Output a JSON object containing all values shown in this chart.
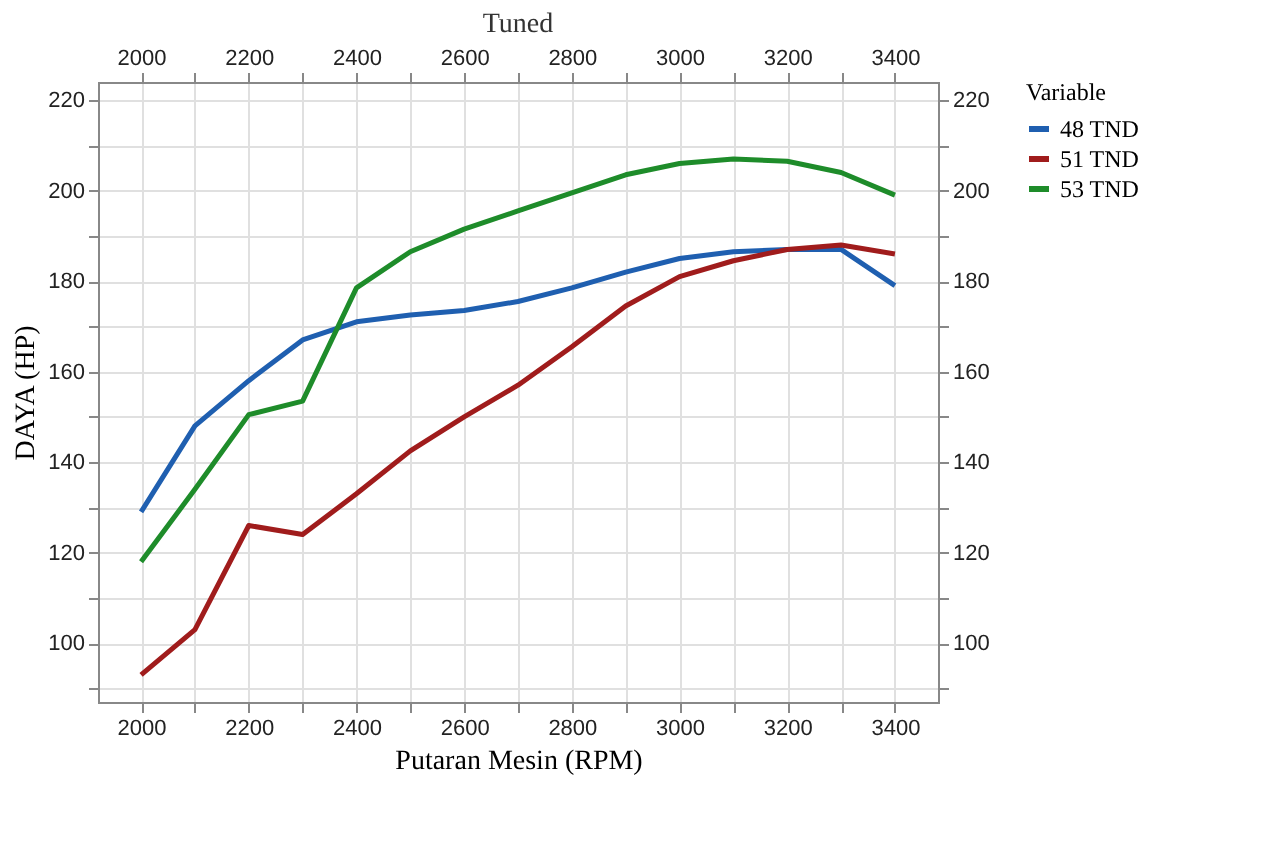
{
  "chart_data": {
    "type": "line",
    "title": "Tuned",
    "xlabel": "Putaran Mesin (RPM)",
    "ylabel": "DAYA (HP)",
    "legend_title": "Variable",
    "x": [
      2000,
      2100,
      2200,
      2300,
      2400,
      2500,
      2600,
      2700,
      2800,
      2900,
      3000,
      3100,
      3200,
      3300,
      3400
    ],
    "series": [
      {
        "name": "48 TND",
        "color": "#1f5fb0",
        "values": [
          129,
          148,
          158,
          167,
          171,
          172.5,
          173.5,
          175.5,
          178.5,
          182,
          185,
          186.5,
          187,
          187,
          179
        ]
      },
      {
        "name": "51 TND",
        "color": "#a01c1c",
        "values": [
          93,
          103,
          126,
          124,
          133,
          142.5,
          150,
          157,
          165.5,
          174.5,
          181,
          184.5,
          187,
          188,
          186
        ]
      },
      {
        "name": "53 TND",
        "color": "#1e8c2a",
        "values": [
          118,
          134,
          150.5,
          153.5,
          178.5,
          186.5,
          191.5,
          195.5,
          199.5,
          203.5,
          206,
          207,
          206.5,
          204,
          199
        ]
      }
    ],
    "xlim": [
      1920,
      3480
    ],
    "xticks": [
      2000,
      {
        "value": 2100,
        "label": null
      },
      2200,
      {
        "value": 2300,
        "label": null
      },
      2400,
      {
        "value": 2500,
        "label": null
      },
      2600,
      {
        "value": 2700,
        "label": null
      },
      2800,
      {
        "value": 2900,
        "label": null
      },
      3000,
      {
        "value": 3100,
        "label": null
      },
      3200,
      {
        "value": 3300,
        "label": null
      },
      3400
    ],
    "x2lim": [
      1920,
      3480
    ],
    "x2ticks": [
      2000,
      {
        "value": 2100,
        "label": null
      },
      2200,
      {
        "value": 2300,
        "label": null
      },
      2400,
      {
        "value": 2500,
        "label": null
      },
      2600,
      {
        "value": 2700,
        "label": null
      },
      2800,
      {
        "value": 2900,
        "label": null
      },
      3000,
      {
        "value": 3100,
        "label": null
      },
      3200,
      {
        "value": 3300,
        "label": null
      },
      3400
    ],
    "ylim": [
      87,
      224
    ],
    "yticks": [
      {
        "value": 90,
        "label": null
      },
      100,
      {
        "value": 110,
        "label": null
      },
      120,
      {
        "value": 130,
        "label": null
      },
      140,
      {
        "value": 150,
        "label": null
      },
      160,
      {
        "value": 170,
        "label": null
      },
      180,
      {
        "value": 190,
        "label": null
      },
      200,
      {
        "value": 210,
        "label": null
      },
      220
    ],
    "y2lim": [
      87,
      224
    ],
    "y2ticks": [
      {
        "value": 90,
        "label": null
      },
      100,
      {
        "value": 110,
        "label": null
      },
      120,
      {
        "value": 130,
        "label": null
      },
      140,
      {
        "value": 150,
        "label": null
      },
      160,
      {
        "value": 170,
        "label": null
      },
      180,
      {
        "value": 190,
        "label": null
      },
      200,
      {
        "value": 210,
        "label": null
      },
      220
    ],
    "grid": true,
    "legend": "right",
    "marker": "none",
    "line_style": "solid"
  }
}
